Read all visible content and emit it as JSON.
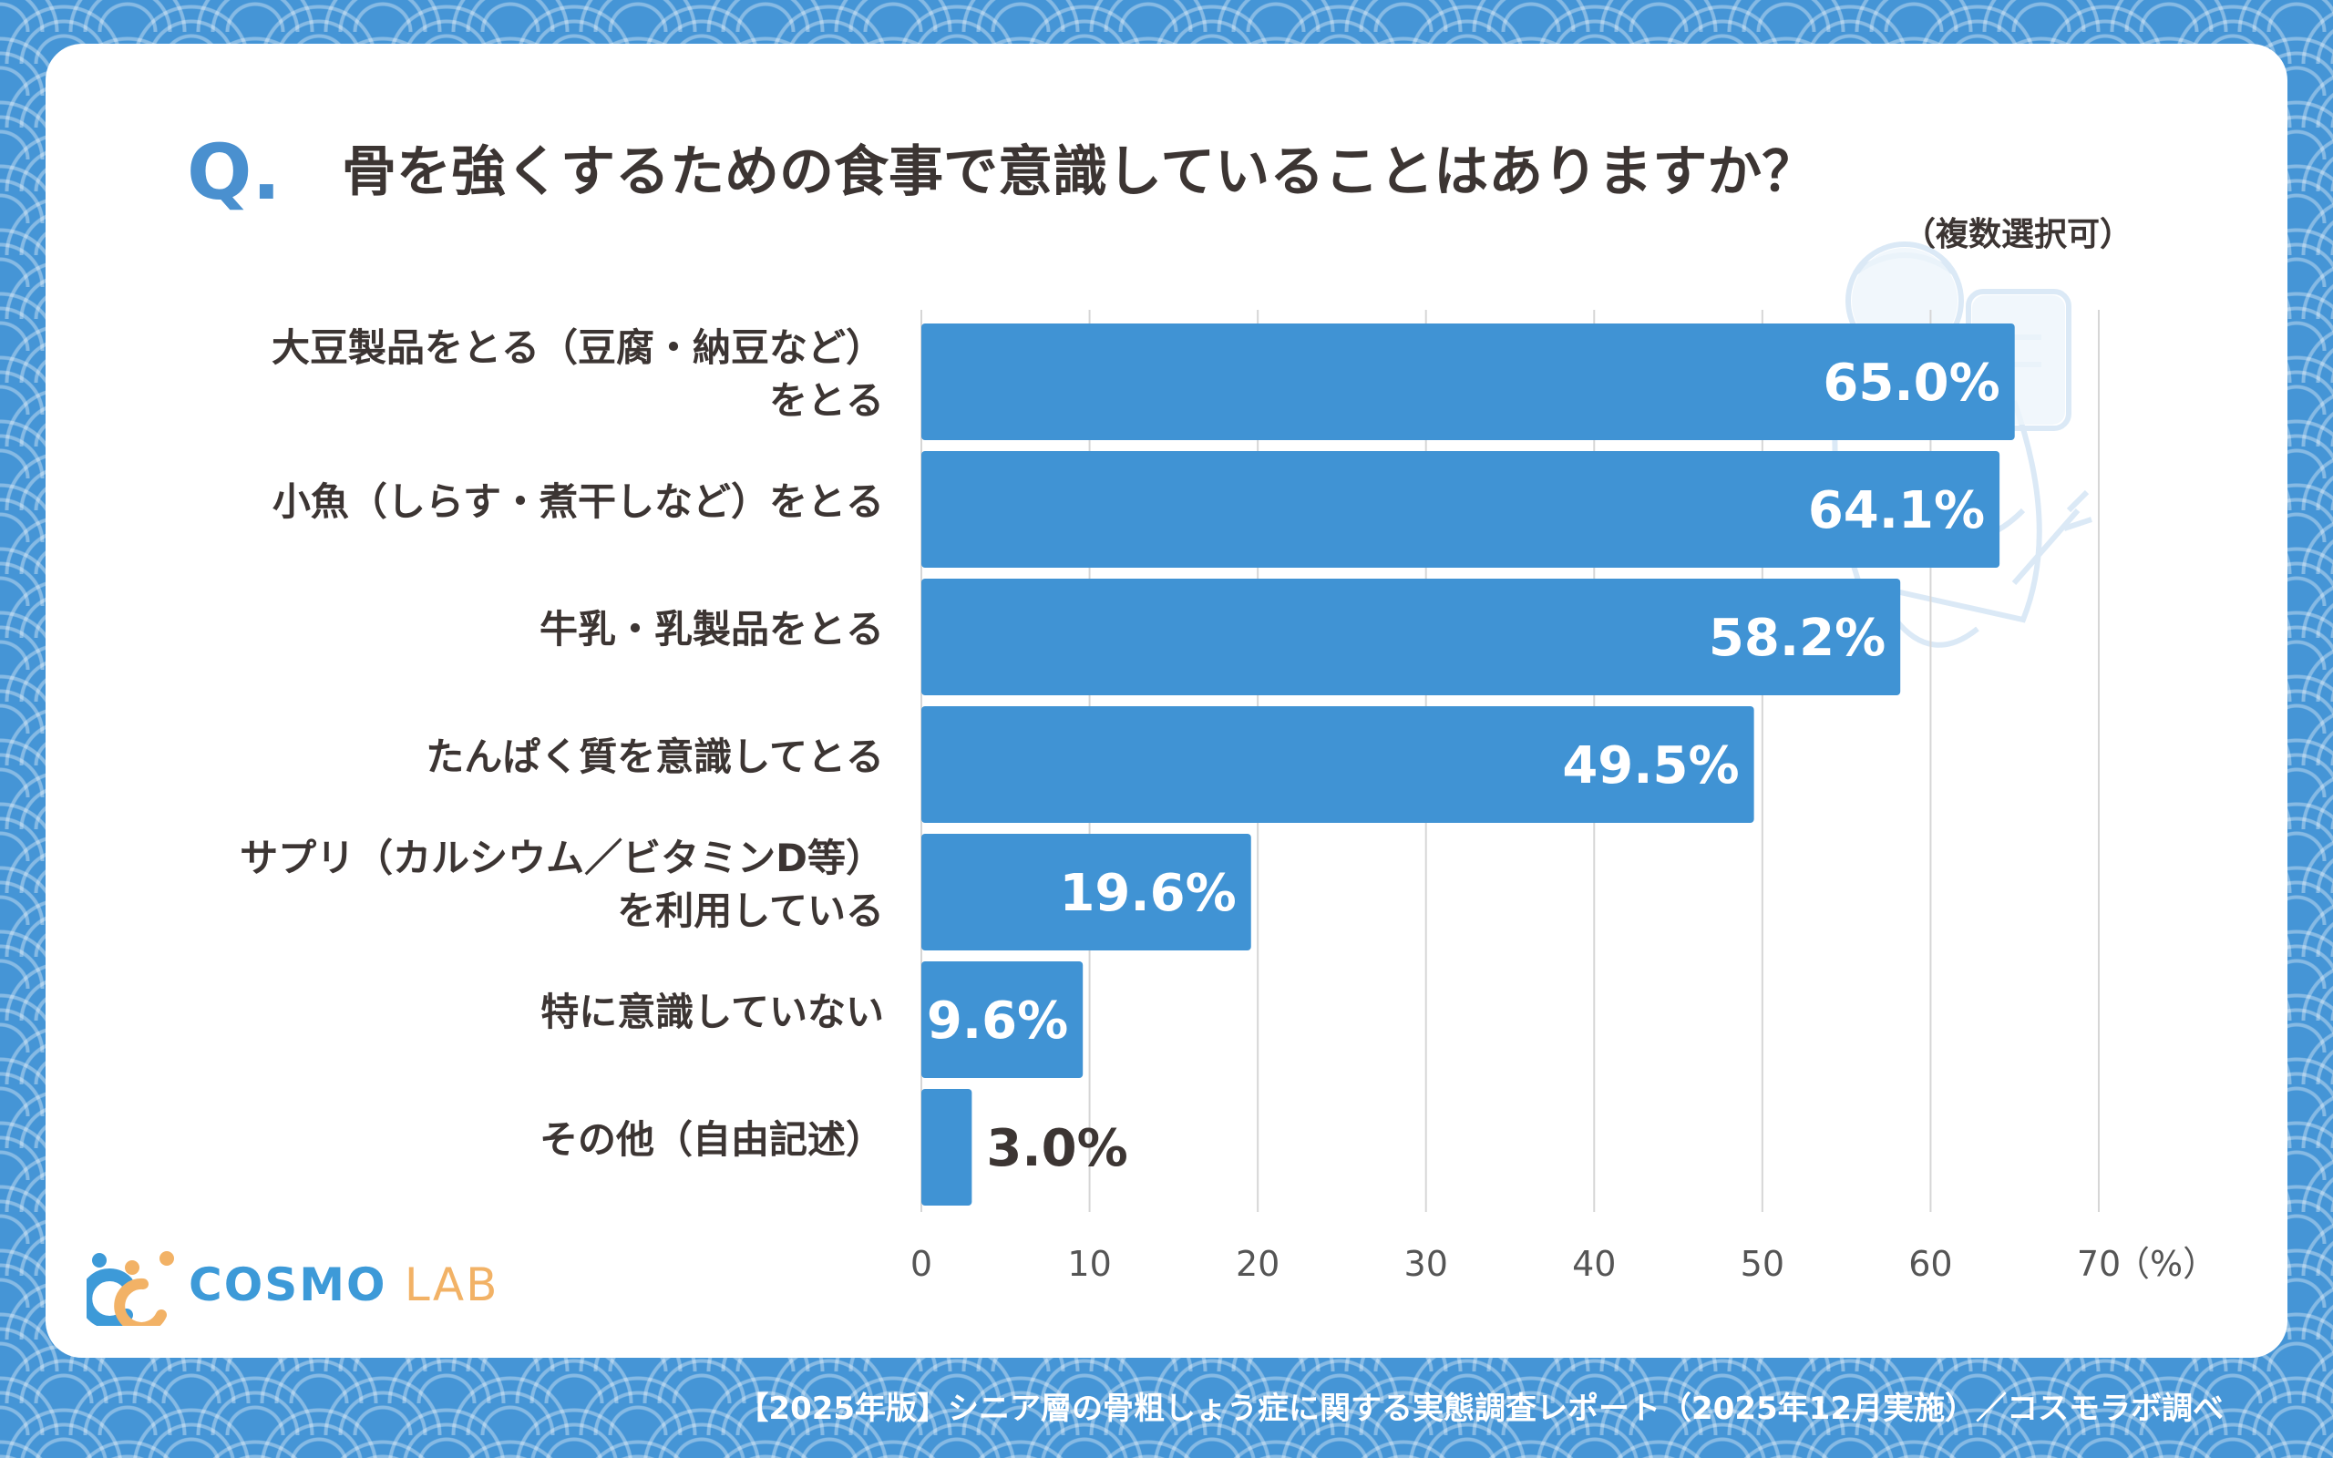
{
  "header": {
    "q_mark": "Q.",
    "title": "骨を強くするための食事で意識していることはありますか？",
    "subtitle": "（複数選択可）"
  },
  "chart_data": {
    "type": "bar",
    "orientation": "horizontal",
    "categories": [
      [
        "大豆製品をとる（豆腐・納豆など）",
        "をとる"
      ],
      [
        "小魚（しらす・煮干しなど）をとる"
      ],
      [
        "牛乳・乳製品をとる"
      ],
      [
        "たんぱく質を意識してとる"
      ],
      [
        "サプリ（カルシウム／ビタミンD等）",
        "を利用している"
      ],
      [
        "特に意識していない"
      ],
      [
        "その他（自由記述）"
      ]
    ],
    "values": [
      65.0,
      64.1,
      58.2,
      49.5,
      19.6,
      9.6,
      3.0
    ],
    "value_labels": [
      "65.0%",
      "64.1%",
      "58.2%",
      "49.5%",
      "19.6%",
      "9.6%",
      "3.0%"
    ],
    "xlim": [
      0,
      70
    ],
    "xticks": [
      "0",
      "10",
      "20",
      "30",
      "40",
      "50",
      "60",
      "70"
    ],
    "unit_label": "（%）",
    "grid": true,
    "bar_color": "#4093d4"
  },
  "brand": {
    "name_part1": "COSMO",
    "name_part2": "LAB",
    "icon": "cosmo-lab-logo-icon"
  },
  "footer": {
    "source": "【2025年版】シニア層の骨粗しょう症に関する実態調査レポート（2025年12月実施）／コスモラボ調べ"
  }
}
